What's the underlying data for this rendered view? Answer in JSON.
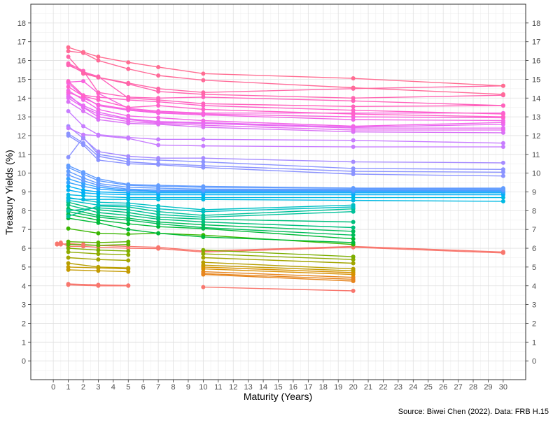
{
  "chart_data": {
    "type": "line",
    "title": "",
    "xlabel": "Maturity (Years)",
    "ylabel": "Treasury Yields (%)",
    "caption": "Source: Biwei Chen (2022). Data: FRB H.15",
    "xlim": [
      -1.5,
      31.5
    ],
    "ylim": [
      -1,
      19
    ],
    "x_ticks": [
      0,
      1,
      2,
      3,
      4,
      5,
      6,
      7,
      8,
      9,
      10,
      11,
      12,
      13,
      14,
      15,
      16,
      17,
      18,
      19,
      20,
      21,
      22,
      23,
      24,
      25,
      26,
      27,
      28,
      29,
      30
    ],
    "y_ticks": [
      0,
      1,
      2,
      3,
      4,
      5,
      6,
      7,
      8,
      9,
      10,
      11,
      12,
      13,
      14,
      15,
      16,
      17,
      18
    ],
    "y_axis_duplicated_right": true,
    "grid": true,
    "legend": "none",
    "series": [
      {
        "color": "#F8766D",
        "x": [
          1,
          3,
          5
        ],
        "y": [
          4.1,
          4.05,
          4.02
        ]
      },
      {
        "color": "#F8766D",
        "x": [
          1,
          3,
          5
        ],
        "y": [
          4.05,
          4.0,
          4.0
        ]
      },
      {
        "color": "#F8766D",
        "x": [
          10,
          20
        ],
        "y": [
          3.93,
          3.73
        ]
      },
      {
        "color": "#F8766D",
        "x": [
          0.25,
          0.5,
          1,
          2,
          3,
          5,
          7,
          10,
          20,
          30
        ],
        "y": [
          6.2,
          6.3,
          6.1,
          6.1,
          6.05,
          6.0,
          5.98,
          5.8,
          6.05,
          5.75
        ]
      },
      {
        "color": "#F8766D",
        "x": [
          0.25,
          0.5,
          1,
          2,
          3,
          5,
          7,
          10,
          20,
          30
        ],
        "y": [
          6.25,
          6.2,
          6.25,
          6.2,
          6.15,
          6.1,
          6.05,
          5.85,
          6.1,
          5.8
        ]
      },
      {
        "color": "#E7851E",
        "x": [
          10,
          20
        ],
        "y": [
          4.6,
          4.25
        ]
      },
      {
        "color": "#E7851E",
        "x": [
          10,
          20
        ],
        "y": [
          4.65,
          4.35
        ]
      },
      {
        "color": "#E7851E",
        "x": [
          10,
          20
        ],
        "y": [
          4.75,
          4.45
        ]
      },
      {
        "color": "#D89000",
        "x": [
          10,
          20
        ],
        "y": [
          4.9,
          4.6
        ]
      },
      {
        "color": "#D89000",
        "x": [
          10,
          20
        ],
        "y": [
          5.0,
          4.7
        ]
      },
      {
        "color": "#C49A00",
        "x": [
          1,
          3,
          5
        ],
        "y": [
          4.85,
          4.8,
          4.75
        ]
      },
      {
        "color": "#C49A00",
        "x": [
          1,
          3,
          5
        ],
        "y": [
          5.0,
          4.95,
          4.9
        ]
      },
      {
        "color": "#C49A00",
        "x": [
          10,
          20
        ],
        "y": [
          5.1,
          4.8
        ]
      },
      {
        "color": "#B79F00",
        "x": [
          1,
          3,
          5
        ],
        "y": [
          5.2,
          5.0,
          4.95
        ]
      },
      {
        "color": "#B79F00",
        "x": [
          10,
          20
        ],
        "y": [
          5.25,
          4.9
        ]
      },
      {
        "color": "#A3A500",
        "x": [
          1,
          3,
          5
        ],
        "y": [
          5.5,
          5.4,
          5.35
        ]
      },
      {
        "color": "#A3A500",
        "x": [
          10,
          20
        ],
        "y": [
          5.5,
          5.2
        ]
      },
      {
        "color": "#8EAB00",
        "x": [
          1,
          3,
          5
        ],
        "y": [
          5.8,
          5.7,
          5.65
        ]
      },
      {
        "color": "#8EAB00",
        "x": [
          10,
          20
        ],
        "y": [
          5.7,
          5.4
        ]
      },
      {
        "color": "#7CAE00",
        "x": [
          1,
          3,
          5
        ],
        "y": [
          6.0,
          5.9,
          5.85
        ]
      },
      {
        "color": "#7CAE00",
        "x": [
          10,
          20
        ],
        "y": [
          5.9,
          5.55
        ]
      },
      {
        "color": "#5BB300",
        "x": [
          1,
          3,
          5
        ],
        "y": [
          6.2,
          6.15,
          6.2
        ]
      },
      {
        "color": "#5BB300",
        "x": [
          1,
          3,
          5
        ],
        "y": [
          6.35,
          6.3,
          6.35
        ]
      },
      {
        "color": "#39B600",
        "x": [
          1,
          3,
          5,
          7,
          10,
          20
        ],
        "y": [
          7.05,
          6.8,
          6.75,
          6.8,
          6.7,
          6.2
        ]
      },
      {
        "color": "#00BA38",
        "x": [
          1,
          3,
          5,
          7,
          10,
          20
        ],
        "y": [
          7.6,
          7.35,
          7.0,
          6.8,
          6.6,
          6.3
        ]
      },
      {
        "color": "#00BA38",
        "x": [
          1,
          3,
          5,
          7,
          10,
          20
        ],
        "y": [
          7.8,
          7.5,
          7.3,
          7.15,
          7.05,
          6.5
        ]
      },
      {
        "color": "#00BC59",
        "x": [
          1,
          3,
          5,
          7,
          10,
          20
        ],
        "y": [
          7.95,
          7.65,
          7.5,
          7.3,
          7.1,
          6.7
        ]
      },
      {
        "color": "#00BC59",
        "x": [
          1,
          3,
          5,
          7,
          10,
          20
        ],
        "y": [
          8.1,
          7.75,
          7.6,
          7.4,
          7.25,
          6.9
        ]
      },
      {
        "color": "#00BF7D",
        "x": [
          1,
          3,
          5,
          7,
          10,
          20
        ],
        "y": [
          8.3,
          7.9,
          7.75,
          7.55,
          7.4,
          7.1
        ]
      },
      {
        "color": "#00BF7D",
        "x": [
          1,
          3,
          5,
          7,
          10,
          20
        ],
        "y": [
          8.45,
          8.05,
          7.9,
          7.65,
          7.55,
          7.4
        ]
      },
      {
        "color": "#00C19A",
        "x": [
          1,
          3,
          5,
          7,
          10,
          20
        ],
        "y": [
          8.0,
          8.15,
          8.05,
          7.8,
          7.65,
          7.95
        ]
      },
      {
        "color": "#00C19A",
        "x": [
          1,
          3,
          5,
          7,
          10,
          20
        ],
        "y": [
          7.7,
          8.25,
          8.2,
          7.95,
          7.75,
          8.1
        ]
      },
      {
        "color": "#00BFC4",
        "x": [
          1,
          3,
          5,
          7,
          10,
          20
        ],
        "y": [
          8.55,
          8.3,
          8.3,
          8.1,
          7.95,
          8.2
        ]
      },
      {
        "color": "#00BFC4",
        "x": [
          1,
          3,
          5,
          7,
          10,
          20
        ],
        "y": [
          8.7,
          8.45,
          8.4,
          8.25,
          8.05,
          8.3
        ]
      },
      {
        "color": "#00B9E3",
        "x": [
          1,
          2,
          3,
          5,
          7,
          10,
          20,
          30
        ],
        "y": [
          8.65,
          8.6,
          8.6,
          8.6,
          8.6,
          8.6,
          8.55,
          8.5
        ]
      },
      {
        "color": "#00B9E3",
        "x": [
          1,
          2,
          3,
          5,
          7,
          10,
          20,
          30
        ],
        "y": [
          8.85,
          8.8,
          8.75,
          8.7,
          8.7,
          8.7,
          8.7,
          8.7
        ]
      },
      {
        "color": "#00B0F6",
        "x": [
          1,
          2,
          3,
          5,
          7,
          10,
          20,
          30
        ],
        "y": [
          9.1,
          8.95,
          8.9,
          8.85,
          8.85,
          8.85,
          8.85,
          8.85
        ]
      },
      {
        "color": "#00B0F6",
        "x": [
          1,
          2,
          3,
          5,
          7,
          10,
          20,
          30
        ],
        "y": [
          9.3,
          9.1,
          9.0,
          8.95,
          8.95,
          8.95,
          8.95,
          8.95
        ]
      },
      {
        "color": "#35A2FF",
        "x": [
          1,
          2,
          3,
          5,
          7,
          10,
          20,
          30
        ],
        "y": [
          9.5,
          9.3,
          9.15,
          9.05,
          9.0,
          9.0,
          9.0,
          9.0
        ]
      },
      {
        "color": "#35A2FF",
        "x": [
          1,
          2,
          3,
          5,
          7,
          10,
          20,
          30
        ],
        "y": [
          9.7,
          9.45,
          9.25,
          9.1,
          9.05,
          9.05,
          9.05,
          9.05
        ]
      },
      {
        "color": "#619CFF",
        "x": [
          1,
          2,
          3,
          5,
          7,
          10,
          20,
          30
        ],
        "y": [
          9.9,
          9.6,
          9.35,
          9.15,
          9.1,
          9.1,
          9.1,
          9.1
        ]
      },
      {
        "color": "#619CFF",
        "x": [
          1,
          2,
          3,
          5,
          7,
          10,
          20,
          30
        ],
        "y": [
          10.1,
          9.75,
          9.45,
          9.25,
          9.2,
          9.15,
          9.15,
          9.15
        ]
      },
      {
        "color": "#619CFF",
        "x": [
          1,
          2,
          3,
          5,
          7,
          10,
          20,
          30
        ],
        "y": [
          10.3,
          9.95,
          9.6,
          9.35,
          9.3,
          9.25,
          9.2,
          9.2
        ]
      },
      {
        "color": "#619CFF",
        "x": [
          1,
          2,
          3,
          5,
          7,
          10,
          20,
          30
        ],
        "y": [
          10.4,
          10.05,
          9.7,
          9.4,
          9.35,
          9.3,
          9.2,
          9.15
        ]
      },
      {
        "color": "#8B93FF",
        "x": [
          1,
          2,
          3,
          5,
          7,
          10,
          20,
          30
        ],
        "y": [
          12.0,
          11.5,
          10.7,
          10.5,
          10.45,
          10.3,
          9.95,
          9.85
        ]
      },
      {
        "color": "#8B93FF",
        "x": [
          1,
          2,
          3,
          5,
          7,
          10,
          20,
          30
        ],
        "y": [
          12.1,
          11.6,
          10.9,
          10.6,
          10.5,
          10.4,
          10.1,
          10.05
        ]
      },
      {
        "color": "#8B93FF",
        "x": [
          1,
          2,
          3,
          5,
          7,
          10,
          20,
          30
        ],
        "y": [
          10.85,
          11.9,
          11.0,
          10.75,
          10.7,
          10.6,
          10.25,
          10.2
        ]
      },
      {
        "color": "#A58AFF",
        "x": [
          1,
          2,
          3,
          5,
          7,
          10,
          20,
          30
        ],
        "y": [
          12.5,
          11.85,
          11.15,
          10.9,
          10.8,
          10.8,
          10.6,
          10.55
        ]
      },
      {
        "color": "#C77CFF",
        "x": [
          1,
          2,
          3,
          5,
          7,
          10,
          20,
          30
        ],
        "y": [
          12.4,
          12.05,
          12.0,
          11.85,
          11.5,
          11.45,
          11.4,
          11.4
        ]
      },
      {
        "color": "#C77CFF",
        "x": [
          1,
          2,
          3,
          5,
          7,
          10,
          20,
          30
        ],
        "y": [
          13.3,
          12.5,
          12.05,
          11.9,
          11.8,
          11.8,
          11.75,
          11.6
        ]
      },
      {
        "color": "#D973F5",
        "x": [
          1,
          2,
          3,
          5,
          7,
          10,
          20,
          30
        ],
        "y": [
          13.8,
          13.3,
          12.85,
          12.65,
          12.6,
          12.45,
          12.2,
          12.15
        ]
      },
      {
        "color": "#E76BF3",
        "x": [
          1,
          2,
          3,
          5,
          7,
          10,
          20,
          30
        ],
        "y": [
          14.0,
          13.5,
          13.0,
          12.75,
          12.65,
          12.55,
          12.3,
          12.3
        ]
      },
      {
        "color": "#E76BF3",
        "x": [
          1,
          2,
          3,
          5,
          7,
          10,
          20,
          30
        ],
        "y": [
          14.2,
          13.5,
          13.15,
          12.85,
          12.7,
          12.65,
          12.4,
          12.4
        ]
      },
      {
        "color": "#E76BF3",
        "x": [
          1,
          2,
          3,
          5,
          7,
          10,
          20,
          30
        ],
        "y": [
          14.1,
          13.6,
          13.25,
          12.9,
          12.75,
          12.7,
          12.45,
          12.6
        ]
      },
      {
        "color": "#F265E7",
        "x": [
          1,
          2,
          3,
          5,
          7,
          10,
          20,
          30
        ],
        "y": [
          14.4,
          13.9,
          13.4,
          13.05,
          12.95,
          12.8,
          12.5,
          12.7
        ]
      },
      {
        "color": "#F265E7",
        "x": [
          1,
          2,
          3,
          5,
          7,
          10,
          20,
          30
        ],
        "y": [
          14.8,
          14.1,
          13.6,
          13.35,
          13.2,
          13.1,
          12.85,
          12.8
        ]
      },
      {
        "color": "#F962DD",
        "x": [
          1,
          2,
          3,
          5,
          7,
          10,
          20,
          30
        ],
        "y": [
          14.3,
          14.0,
          13.65,
          13.4,
          13.25,
          13.15,
          13.0,
          12.95
        ]
      },
      {
        "color": "#F962DD",
        "x": [
          1,
          2,
          3,
          5,
          7,
          10,
          20,
          30
        ],
        "y": [
          14.85,
          14.9,
          14.25,
          13.45,
          13.3,
          13.2,
          13.2,
          13.2
        ]
      },
      {
        "color": "#FF61C9",
        "x": [
          1,
          2,
          3,
          5,
          7,
          10,
          20,
          30
        ],
        "y": [
          14.6,
          14.1,
          13.9,
          13.5,
          13.6,
          13.4,
          13.15,
          13.0
        ]
      },
      {
        "color": "#FF61C9",
        "x": [
          1,
          2,
          3,
          5,
          7,
          10,
          20,
          30
        ],
        "y": [
          14.9,
          14.15,
          14.05,
          13.9,
          13.8,
          13.6,
          13.35,
          13.15
        ]
      },
      {
        "color": "#FF62BC",
        "x": [
          1,
          2,
          3,
          5,
          7,
          10,
          20,
          30
        ],
        "y": [
          15.75,
          15.4,
          15.15,
          14.0,
          13.9,
          13.7,
          13.55,
          13.6
        ]
      },
      {
        "color": "#FF62BC",
        "x": [
          1,
          2,
          3,
          5,
          7,
          10,
          20,
          30
        ],
        "y": [
          15.85,
          15.45,
          14.3,
          14.05,
          14.0,
          14.05,
          13.85,
          13.6
        ]
      },
      {
        "color": "#FF64B0",
        "x": [
          1,
          2,
          3,
          5,
          7,
          10,
          20,
          30
        ],
        "y": [
          15.8,
          15.35,
          15.1,
          14.75,
          14.35,
          14.2,
          14.0,
          14.15
        ]
      },
      {
        "color": "#FF65A6",
        "x": [
          1,
          2,
          3,
          5,
          7,
          10,
          20,
          30
        ],
        "y": [
          16.2,
          15.3,
          15.1,
          14.8,
          14.5,
          14.3,
          14.5,
          14.65
        ]
      },
      {
        "color": "#FF6A98",
        "x": [
          1,
          2,
          3,
          5,
          7,
          10,
          20,
          30
        ],
        "y": [
          16.5,
          16.4,
          16.0,
          15.55,
          15.2,
          14.95,
          14.55,
          14.2
        ]
      },
      {
        "color": "#FF6C91",
        "x": [
          1,
          2,
          3,
          5,
          7,
          10,
          20,
          30
        ],
        "y": [
          16.7,
          16.45,
          16.2,
          15.9,
          15.65,
          15.3,
          15.05,
          14.65
        ]
      }
    ]
  }
}
